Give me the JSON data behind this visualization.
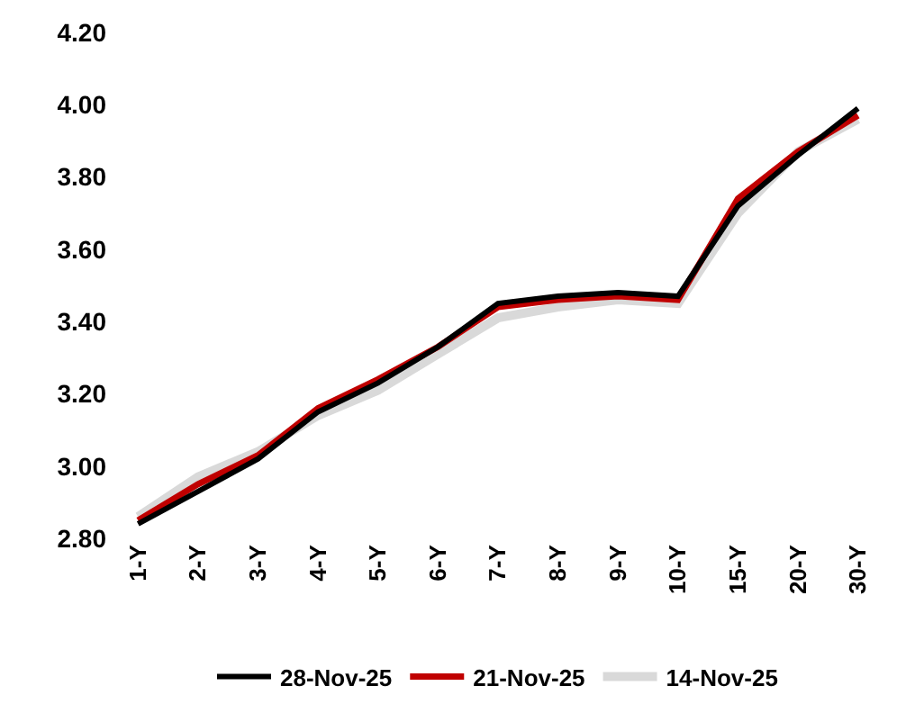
{
  "chart_data": {
    "type": "line",
    "categories": [
      "1-Y",
      "2-Y",
      "3-Y",
      "4-Y",
      "5-Y",
      "6-Y",
      "7-Y",
      "8-Y",
      "9-Y",
      "10-Y",
      "15-Y",
      "20-Y",
      "30-Y"
    ],
    "ylim": [
      2.8,
      4.2
    ],
    "yticks": [
      {
        "value": 2.8,
        "label": "2.80"
      },
      {
        "value": 3.0,
        "label": "3.00"
      },
      {
        "value": 3.2,
        "label": "3.20"
      },
      {
        "value": 3.4,
        "label": "3.40"
      },
      {
        "value": 3.6,
        "label": "3.60"
      },
      {
        "value": 3.8,
        "label": "3.80"
      },
      {
        "value": 4.0,
        "label": "4.00"
      },
      {
        "value": 4.2,
        "label": "4.20"
      }
    ],
    "legend": "bottom",
    "marker": "none",
    "line_style": "solid",
    "series": [
      {
        "name": "28-Nov-25",
        "color": "#000000",
        "values": [
          2.84,
          2.93,
          3.02,
          3.15,
          3.23,
          3.33,
          3.45,
          3.47,
          3.48,
          3.47,
          3.72,
          3.86,
          3.99
        ]
      },
      {
        "name": "21-Nov-25",
        "color": "#c00000",
        "values": [
          2.85,
          2.95,
          3.03,
          3.16,
          3.24,
          3.33,
          3.44,
          3.46,
          3.47,
          3.46,
          3.74,
          3.87,
          3.97
        ]
      },
      {
        "name": "14-Nov-25",
        "color": "#d9d9d9",
        "values": [
          2.86,
          2.97,
          3.04,
          3.14,
          3.21,
          3.31,
          3.41,
          3.44,
          3.46,
          3.45,
          3.7,
          3.87,
          3.96
        ]
      }
    ]
  }
}
